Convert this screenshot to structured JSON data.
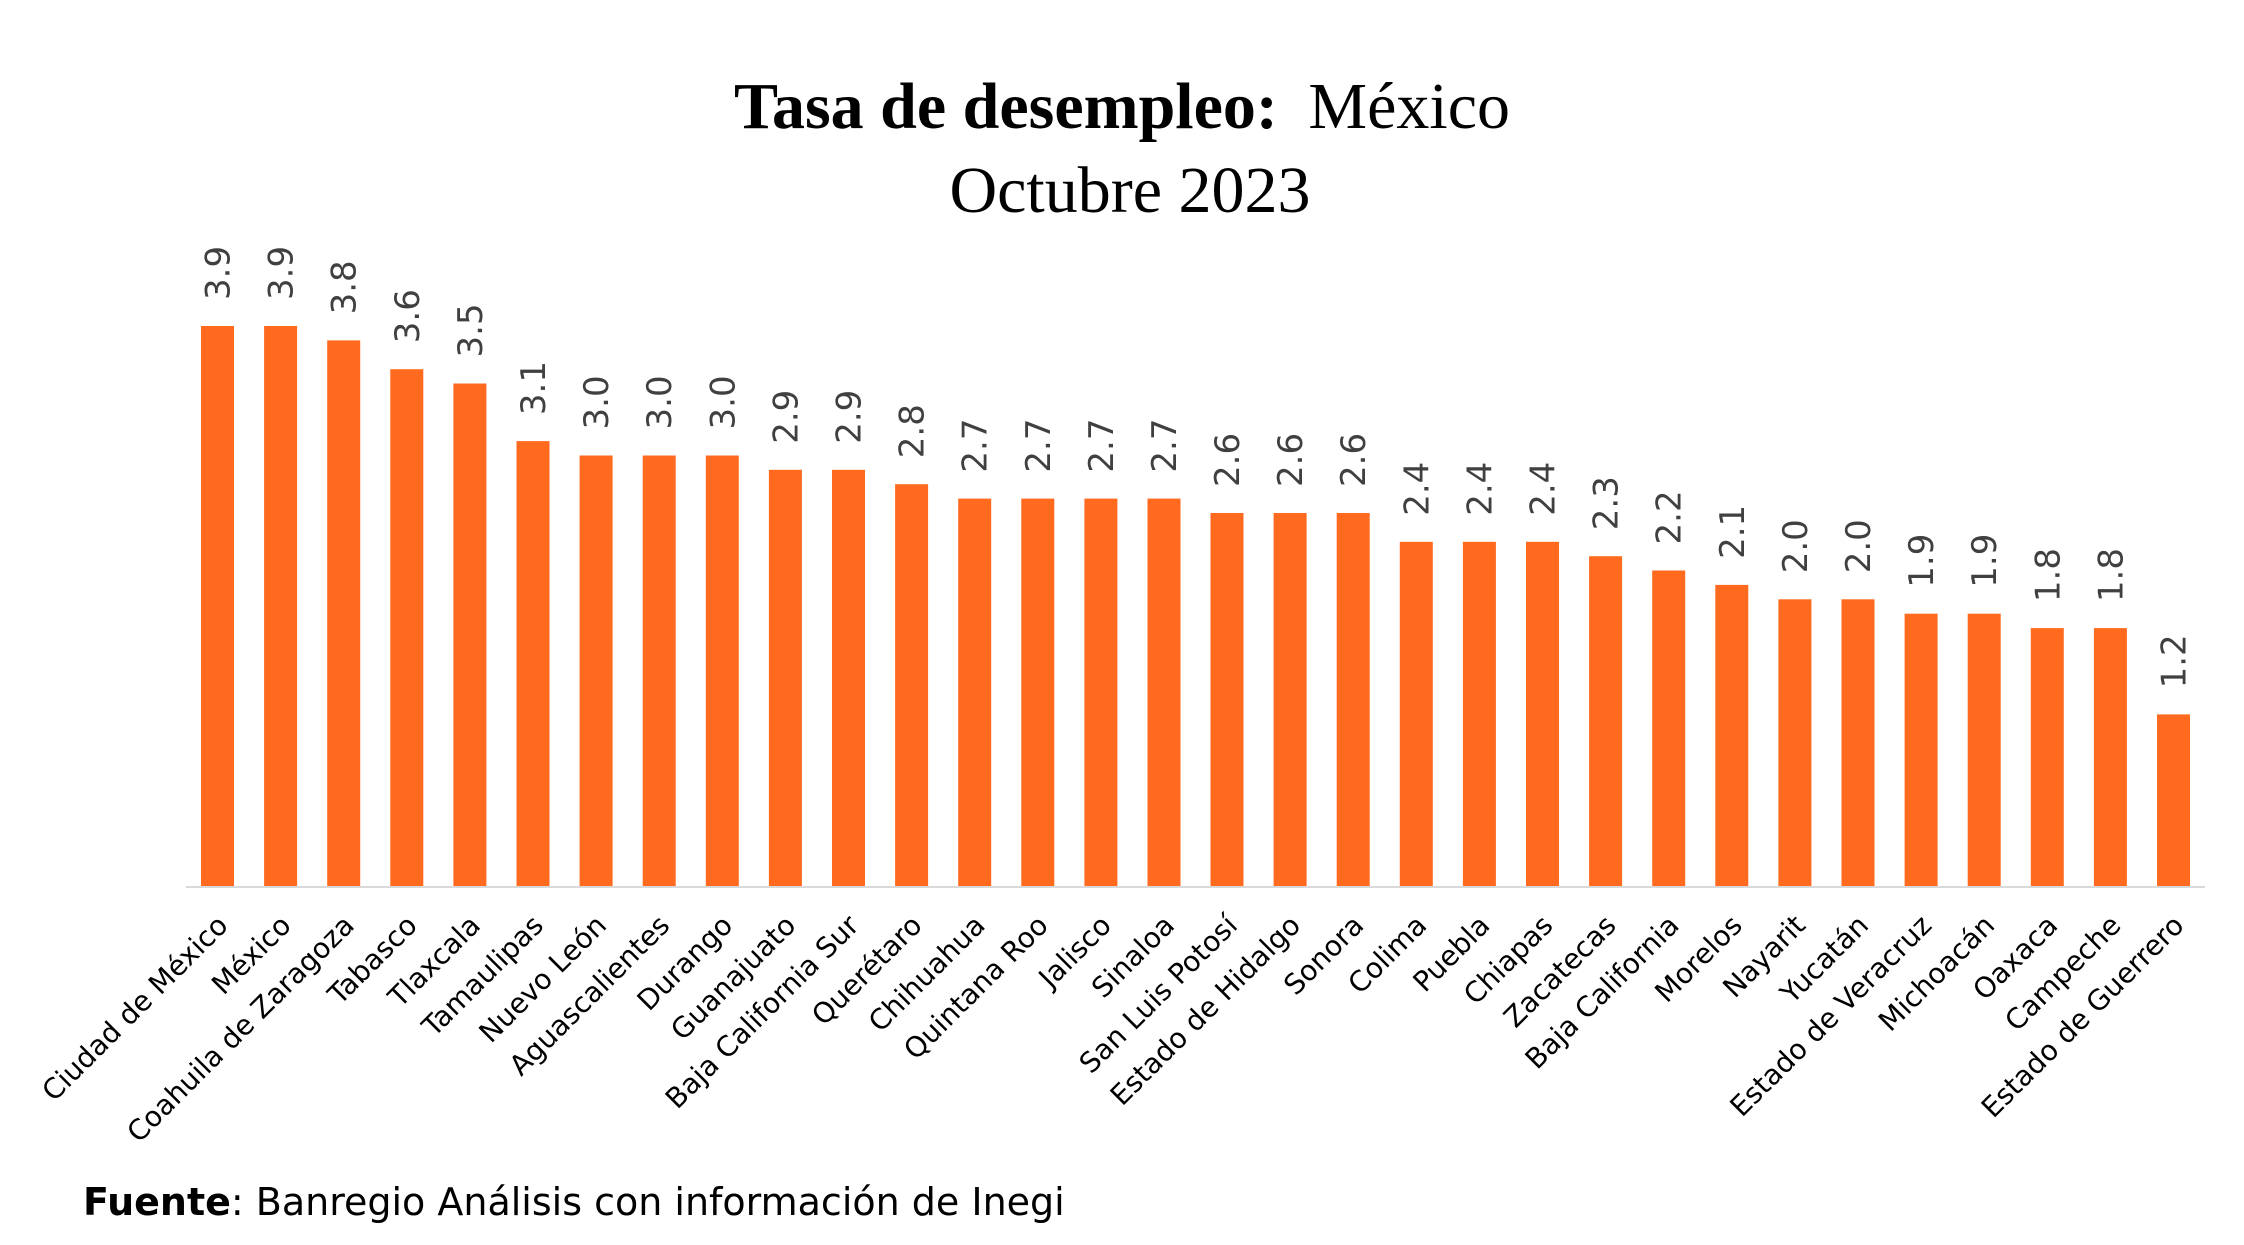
{
  "chart_data": {
    "type": "bar",
    "title": "Tasa de desempleo:",
    "title_suffix": "México",
    "subtitle": "Octubre 2023",
    "categories": [
      "Ciudad de México",
      "México",
      "Coahuila de Zaragoza",
      "Tabasco",
      "Tlaxcala",
      "Tamaulipas",
      "Nuevo León",
      "Aguascalientes",
      "Durango",
      "Guanajuato",
      "Baja California Sur",
      "Querétaro",
      "Chihuahua",
      "Quintana Roo",
      "Jalisco",
      "Sinaloa",
      "San Luis Potosí",
      "Estado de Hidalgo",
      "Sonora",
      "Colima",
      "Puebla",
      "Chiapas",
      "Zacatecas",
      "Baja California",
      "Morelos",
      "Nayarit",
      "Yucatán",
      "Estado de Veracruz",
      "Michoacán",
      "Oaxaca",
      "Campeche",
      "Estado de Guerrero"
    ],
    "values": [
      3.9,
      3.9,
      3.8,
      3.6,
      3.5,
      3.1,
      3.0,
      3.0,
      3.0,
      2.9,
      2.9,
      2.8,
      2.7,
      2.7,
      2.7,
      2.7,
      2.6,
      2.6,
      2.6,
      2.4,
      2.4,
      2.4,
      2.3,
      2.2,
      2.1,
      2.0,
      2.0,
      1.9,
      1.9,
      1.8,
      1.8,
      1.2
    ],
    "value_labels": [
      "3.9",
      "3.9",
      "3.8",
      "3.6",
      "3.5",
      "3.1",
      "3.0",
      "3.0",
      "3.0",
      "2.9",
      "2.9",
      "2.8",
      "2.7",
      "2.7",
      "2.7",
      "2.7",
      "2.6",
      "2.6",
      "2.6",
      "2.4",
      "2.4",
      "2.4",
      "2.3",
      "2.2",
      "2.1",
      "2.0",
      "2.0",
      "1.9",
      "1.9",
      "1.8",
      "1.8",
      "1.2"
    ],
    "xlabel": "",
    "ylabel": "",
    "ylim": [
      0,
      4.1
    ],
    "grid": false,
    "bar_color": "#FF6A1F"
  },
  "footer": {
    "source_label": "Fuente",
    "source_text": ": Banregio Análisis con información de Inegi"
  }
}
